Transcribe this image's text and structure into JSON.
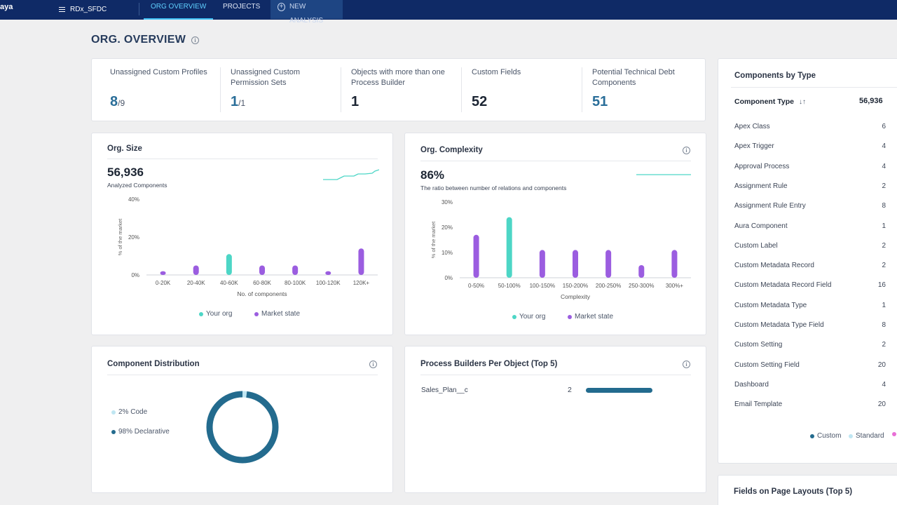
{
  "app": {
    "logo": "aya",
    "org_name": "RDx_SFDC"
  },
  "nav": {
    "tabs": [
      "ORG OVERVIEW",
      "PROJECTS",
      "NEW ANALYSIS"
    ],
    "active": "ORG OVERVIEW"
  },
  "page": {
    "title": "ORG. OVERVIEW"
  },
  "metrics": [
    {
      "label": "Unassigned Custom Profiles",
      "value": "8",
      "total": "/9"
    },
    {
      "label": "Unassigned Custom Permission Sets",
      "value": "1",
      "total": "/1"
    },
    {
      "label": "Objects with more than one Process Builder",
      "value": "1",
      "total": ""
    },
    {
      "label": "Custom Fields",
      "value": "52",
      "total": ""
    },
    {
      "label": "Potential Technical Debt Components",
      "value": "51",
      "total": ""
    }
  ],
  "org_size": {
    "title": "Org. Size",
    "value": "56,936",
    "subtitle": "Analyzed Components",
    "legend_your_org": "Your org",
    "legend_market": "Market state"
  },
  "org_complexity": {
    "title": "Org. Complexity",
    "value": "86%",
    "subtitle": "The ratio between number of relations and components",
    "legend_your_org": "Your org",
    "legend_market": "Market state"
  },
  "chart_data": [
    {
      "type": "bar",
      "categories": [
        "0-20K",
        "20-40K",
        "40-60K",
        "60-80K",
        "80-100K",
        "100-120K",
        "120K+"
      ],
      "values": [
        2,
        5,
        11,
        5,
        5,
        2,
        14
      ],
      "highlight_index": 2,
      "xlabel": "No. of components",
      "ylabel": "% of the market",
      "ylim": [
        0,
        40
      ],
      "yticks": [
        "0%",
        "20%",
        "40%"
      ],
      "colors": {
        "your_org": "#4dd6c6",
        "market": "#9b5de0"
      }
    },
    {
      "type": "bar",
      "categories": [
        "0-50%",
        "50-100%",
        "100-150%",
        "150-200%",
        "200-250%",
        "250-300%",
        "300%+"
      ],
      "values": [
        17,
        24,
        11,
        11,
        11,
        5,
        11
      ],
      "highlight_index": 1,
      "xlabel": "Complexity",
      "ylabel": "% of the market",
      "ylim": [
        0,
        30
      ],
      "yticks": [
        "0%",
        "10%",
        "20%",
        "30%"
      ],
      "colors": {
        "your_org": "#4dd6c6",
        "market": "#9b5de0"
      }
    },
    {
      "type": "pie",
      "labels": [
        "Code",
        "Declarative"
      ],
      "values": [
        2,
        98
      ],
      "colors": [
        "#bfe6f2",
        "#236b8e"
      ]
    }
  ],
  "distribution": {
    "title": "Component Distribution",
    "legend": [
      {
        "text": "2% Code",
        "color": "#bfe6f2"
      },
      {
        "text": "98% Declarative",
        "color": "#236b8e"
      }
    ]
  },
  "process_builders": {
    "title": "Process Builders Per Object (Top 5)",
    "rows": [
      {
        "name": "Sales_Plan__c",
        "count": "2",
        "fraction": 1.0
      }
    ]
  },
  "components_by_type": {
    "title": "Components by Type",
    "column_header": "Component Type",
    "total": "56,936",
    "rows": [
      {
        "name": "Apex Class",
        "count": "6"
      },
      {
        "name": "Apex Trigger",
        "count": "4"
      },
      {
        "name": "Approval Process",
        "count": "4"
      },
      {
        "name": "Assignment Rule",
        "count": "2"
      },
      {
        "name": "Assignment Rule Entry",
        "count": "8"
      },
      {
        "name": "Aura Component",
        "count": "1"
      },
      {
        "name": "Custom Label",
        "count": "2"
      },
      {
        "name": "Custom Metadata Record",
        "count": "2"
      },
      {
        "name": "Custom Metadata Record Field",
        "count": "16"
      },
      {
        "name": "Custom Metadata Type",
        "count": "1"
      },
      {
        "name": "Custom Metadata Type Field",
        "count": "8"
      },
      {
        "name": "Custom Setting",
        "count": "2"
      },
      {
        "name": "Custom Setting Field",
        "count": "20"
      },
      {
        "name": "Dashboard",
        "count": "4"
      },
      {
        "name": "Email Template",
        "count": "20"
      }
    ],
    "legend": [
      {
        "text": "Custom",
        "color": "#236b8e"
      },
      {
        "text": "Standard",
        "color": "#bfe6f2"
      }
    ]
  },
  "fields_on_layouts": {
    "title": "Fields on Page Layouts (Top 5)"
  }
}
